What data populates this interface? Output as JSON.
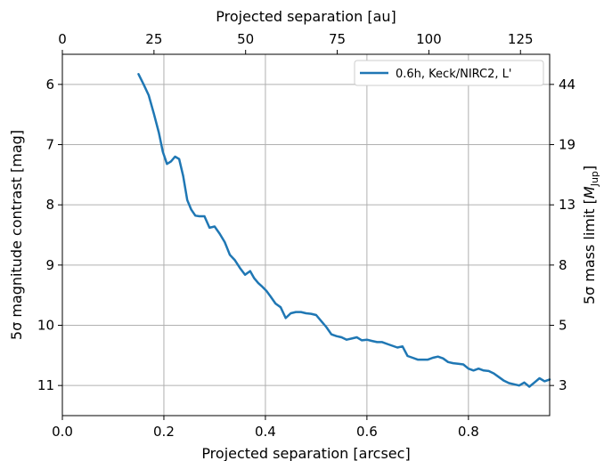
{
  "chart_data": {
    "type": "line",
    "xlabel": "Projected separation [arcsec]",
    "xlabel_top": "Projected separation [au]",
    "ylabel": "5σ magnitude contrast [mag]",
    "ylabel_right_prefix": "5σ mass limit [",
    "ylabel_right_symbol": "M",
    "ylabel_right_sub": "Jup",
    "ylabel_right_suffix": "]",
    "xlim": [
      0.0,
      0.96
    ],
    "ylim": [
      11.5,
      5.5
    ],
    "y_inverted": true,
    "x_ticks": [
      "0.0",
      "0.2",
      "0.4",
      "0.6",
      "0.8"
    ],
    "x_tick_values": [
      0.0,
      0.2,
      0.4,
      0.6,
      0.8
    ],
    "y_ticks": [
      "6",
      "7",
      "8",
      "9",
      "10",
      "11"
    ],
    "y_tick_values": [
      6,
      7,
      8,
      9,
      10,
      11
    ],
    "top_ticks": [
      "0",
      "25",
      "50",
      "75",
      "100",
      "125"
    ],
    "top_tick_au": [
      0,
      25,
      50,
      75,
      100,
      125
    ],
    "au_per_arcsec": 138.5,
    "right_ticks": [
      "44",
      "19",
      "13",
      "8",
      "5",
      "3"
    ],
    "right_tick_mag": [
      6,
      7,
      8,
      9,
      10,
      11
    ],
    "grid": true,
    "legend_position": "top-right",
    "series": [
      {
        "name": "0.6h, Keck/NIRC2, L'",
        "color": "#1f77b4",
        "x": [
          0.15,
          0.16,
          0.17,
          0.18,
          0.19,
          0.198,
          0.206,
          0.214,
          0.222,
          0.23,
          0.238,
          0.246,
          0.254,
          0.262,
          0.27,
          0.28,
          0.29,
          0.3,
          0.31,
          0.32,
          0.33,
          0.34,
          0.35,
          0.36,
          0.37,
          0.378,
          0.386,
          0.394,
          0.402,
          0.41,
          0.42,
          0.43,
          0.44,
          0.45,
          0.46,
          0.47,
          0.48,
          0.49,
          0.5,
          0.51,
          0.52,
          0.53,
          0.54,
          0.55,
          0.56,
          0.57,
          0.58,
          0.59,
          0.6,
          0.61,
          0.62,
          0.63,
          0.64,
          0.65,
          0.66,
          0.67,
          0.68,
          0.69,
          0.7,
          0.71,
          0.72,
          0.73,
          0.74,
          0.75,
          0.76,
          0.77,
          0.78,
          0.79,
          0.8,
          0.81,
          0.82,
          0.83,
          0.84,
          0.85,
          0.86,
          0.87,
          0.88,
          0.89,
          0.9,
          0.91,
          0.92,
          0.93,
          0.94,
          0.95,
          0.96
        ],
        "y": [
          5.83,
          6.0,
          6.18,
          6.48,
          6.8,
          7.12,
          7.32,
          7.28,
          7.2,
          7.24,
          7.52,
          7.92,
          8.08,
          8.18,
          8.19,
          8.19,
          8.38,
          8.36,
          8.48,
          8.62,
          8.83,
          8.92,
          9.05,
          9.16,
          9.1,
          9.22,
          9.3,
          9.36,
          9.43,
          9.52,
          9.64,
          9.7,
          9.88,
          9.8,
          9.78,
          9.78,
          9.8,
          9.81,
          9.83,
          9.93,
          10.03,
          10.15,
          10.18,
          10.2,
          10.24,
          10.22,
          10.2,
          10.25,
          10.24,
          10.26,
          10.28,
          10.28,
          10.31,
          10.34,
          10.37,
          10.35,
          10.51,
          10.54,
          10.57,
          10.57,
          10.57,
          10.54,
          10.52,
          10.55,
          10.61,
          10.63,
          10.64,
          10.65,
          10.72,
          10.75,
          10.72,
          10.75,
          10.76,
          10.8,
          10.86,
          10.92,
          10.96,
          10.98,
          11.0,
          10.95,
          11.02,
          10.95,
          10.88,
          10.93,
          10.9
        ]
      }
    ]
  }
}
